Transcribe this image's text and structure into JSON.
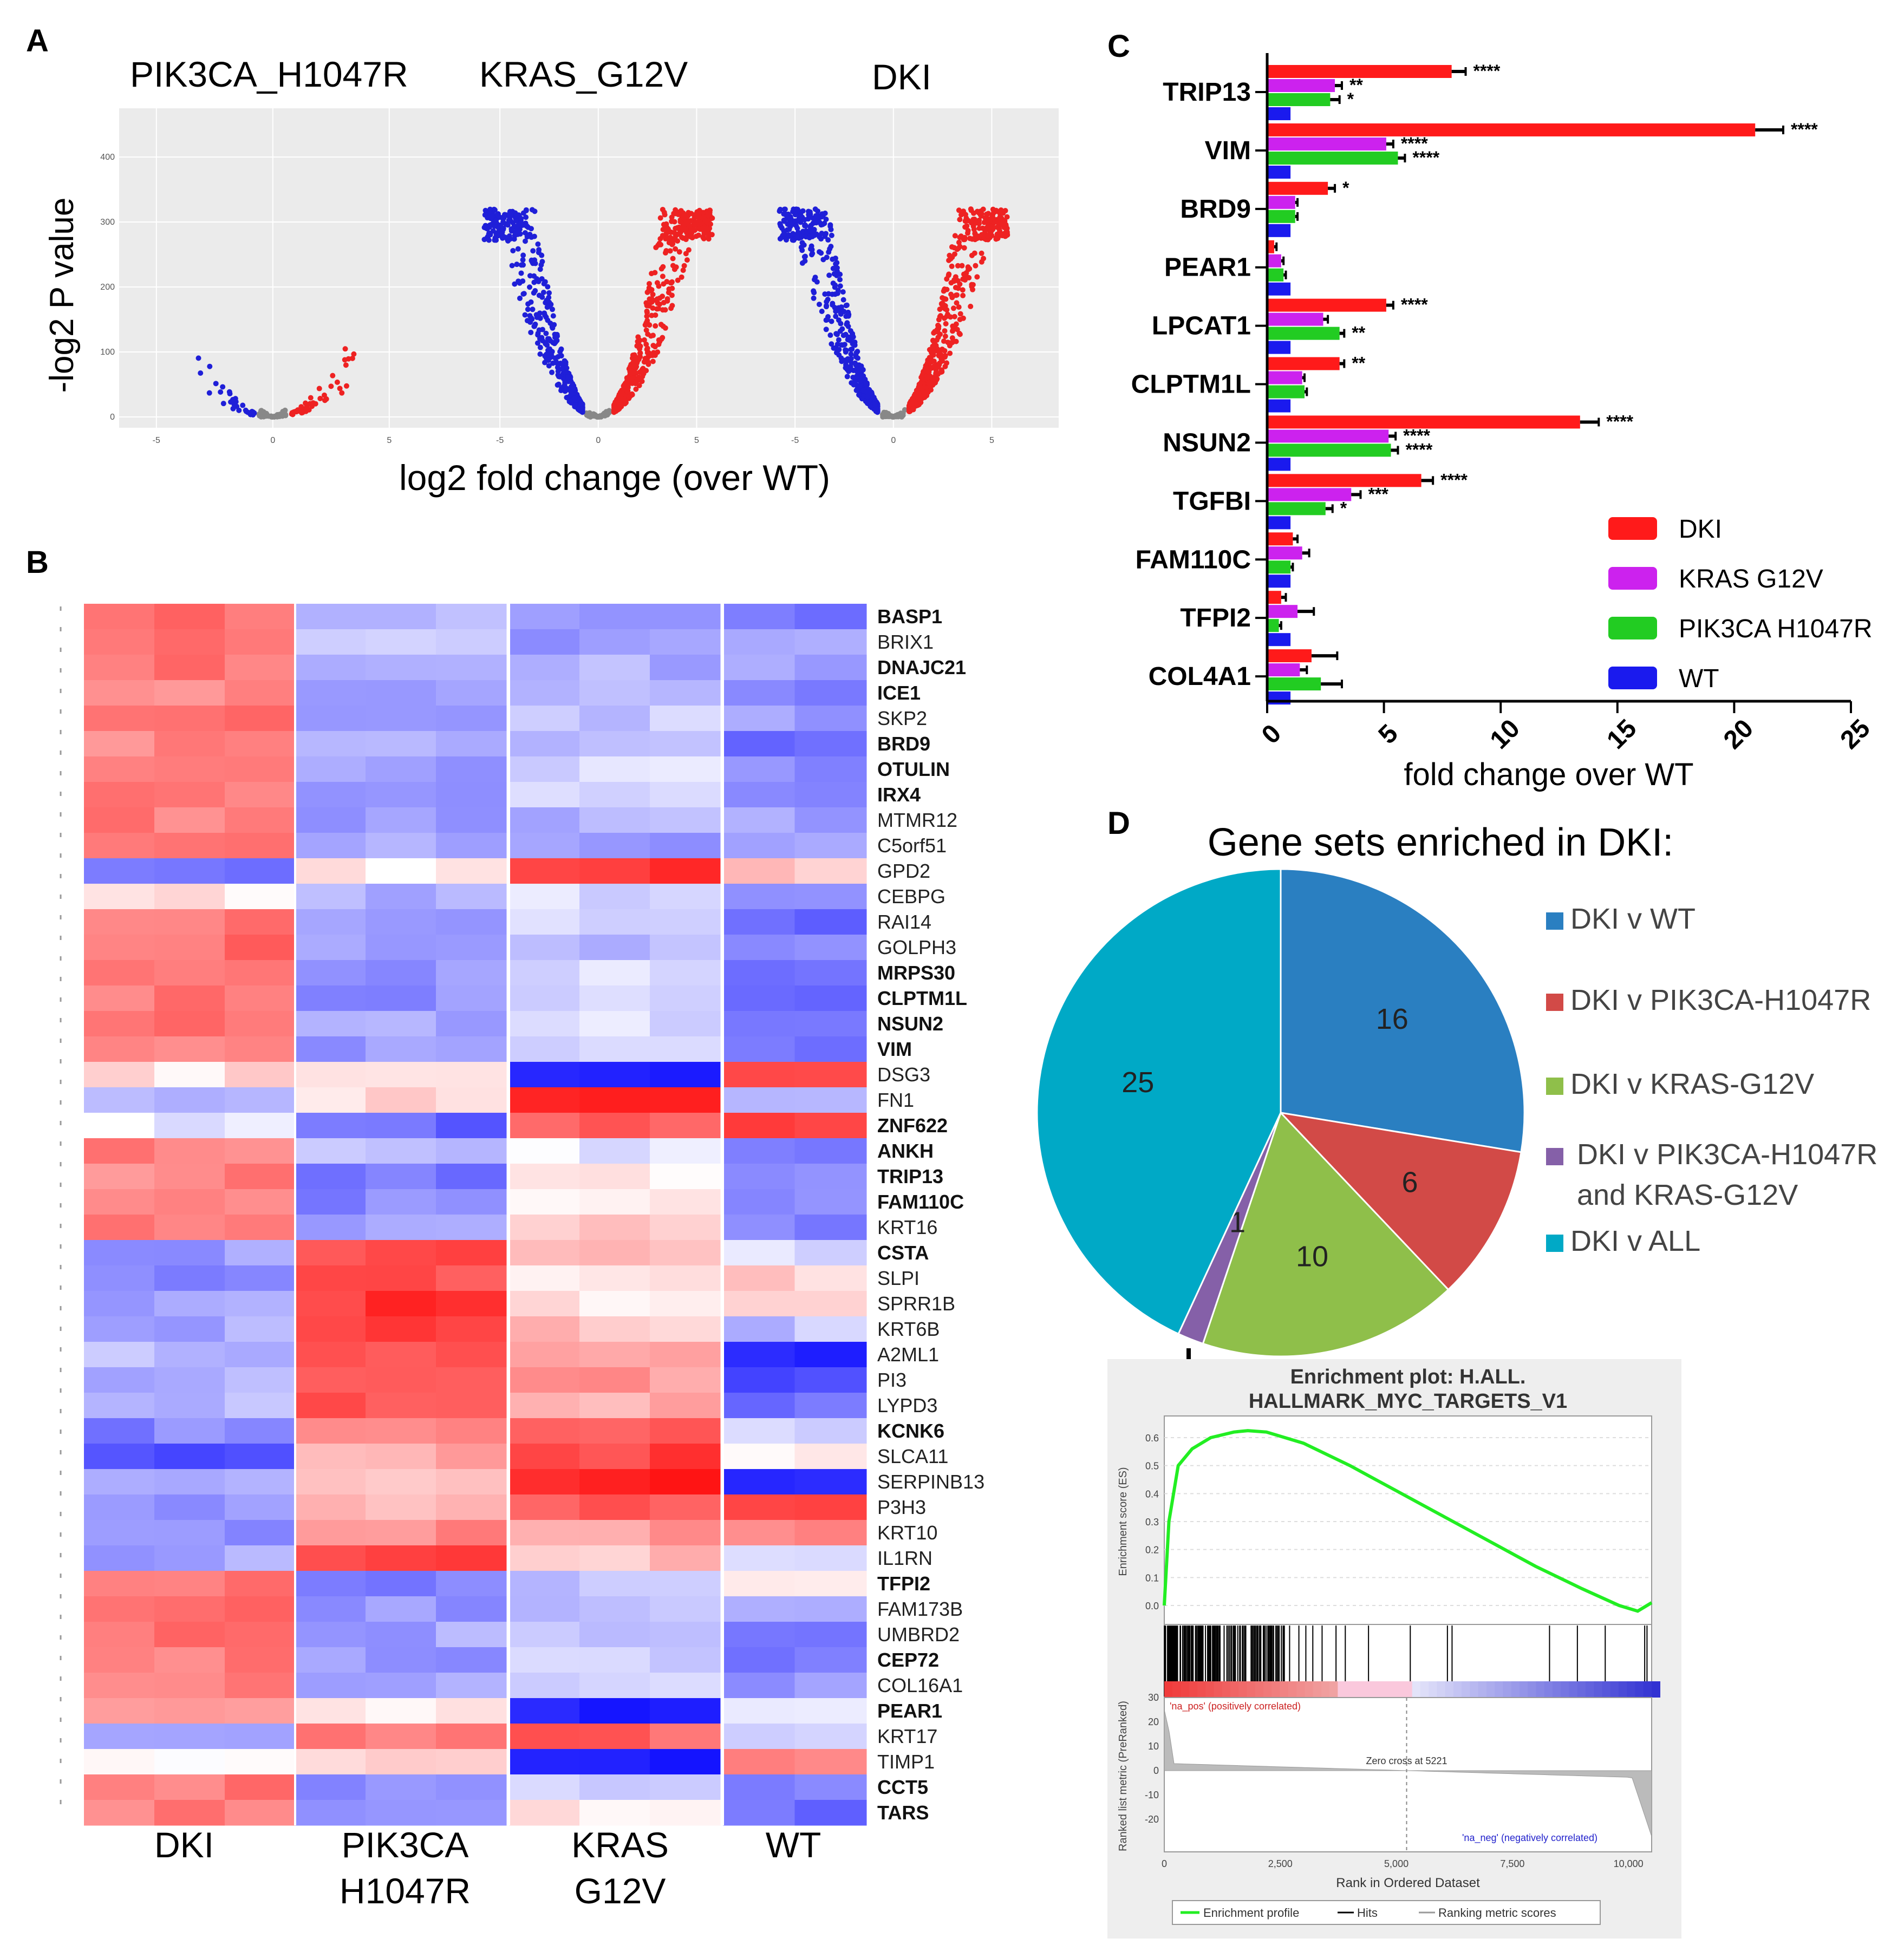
{
  "panels": {
    "A": "A",
    "B": "B",
    "C": "C",
    "D": "D"
  },
  "panel_a": {
    "titles": [
      "PIK3CA_H1047R",
      "KRAS_G12V",
      "DKI"
    ],
    "ylabel": "-log2 P value",
    "xlabel": "log2 fold change (over WT)",
    "y_ticks": [
      "400",
      "300",
      "200",
      "100",
      "0"
    ],
    "x_ticks": [
      "-5",
      "0",
      "5"
    ],
    "colors": {
      "down": "#1f1fd8",
      "up": "#ee2222",
      "ns": "#888888",
      "bg": "#ebebeb"
    }
  },
  "panel_b": {
    "genes": [
      {
        "name": "BASP1",
        "bold": true
      },
      {
        "name": "BRIX1",
        "bold": false
      },
      {
        "name": "DNAJC21",
        "bold": true
      },
      {
        "name": "ICE1",
        "bold": true
      },
      {
        "name": "SKP2",
        "bold": false
      },
      {
        "name": "BRD9",
        "bold": true
      },
      {
        "name": "OTULIN",
        "bold": true
      },
      {
        "name": "IRX4",
        "bold": true
      },
      {
        "name": "MTMR12",
        "bold": false
      },
      {
        "name": "C5orf51",
        "bold": false
      },
      {
        "name": "GPD2",
        "bold": false
      },
      {
        "name": "CEBPG",
        "bold": false
      },
      {
        "name": "RAI14",
        "bold": false
      },
      {
        "name": "GOLPH3",
        "bold": false
      },
      {
        "name": "MRPS30",
        "bold": true
      },
      {
        "name": "CLPTM1L",
        "bold": true
      },
      {
        "name": "NSUN2",
        "bold": true
      },
      {
        "name": "VIM",
        "bold": true
      },
      {
        "name": "DSG3",
        "bold": false
      },
      {
        "name": "FN1",
        "bold": false
      },
      {
        "name": "ZNF622",
        "bold": true
      },
      {
        "name": "ANKH",
        "bold": true
      },
      {
        "name": "TRIP13",
        "bold": true
      },
      {
        "name": "FAM110C",
        "bold": true
      },
      {
        "name": "KRT16",
        "bold": false
      },
      {
        "name": "CSTA",
        "bold": true
      },
      {
        "name": "SLPI",
        "bold": false
      },
      {
        "name": "SPRR1B",
        "bold": false
      },
      {
        "name": "KRT6B",
        "bold": false
      },
      {
        "name": "A2ML1",
        "bold": false
      },
      {
        "name": "PI3",
        "bold": false
      },
      {
        "name": "LYPD3",
        "bold": false
      },
      {
        "name": "KCNK6",
        "bold": true
      },
      {
        "name": "SLCA11",
        "bold": false
      },
      {
        "name": "SERPINB13",
        "bold": false
      },
      {
        "name": "P3H3",
        "bold": false
      },
      {
        "name": "KRT10",
        "bold": false
      },
      {
        "name": "IL1RN",
        "bold": false
      },
      {
        "name": "TFPI2",
        "bold": true
      },
      {
        "name": "FAM173B",
        "bold": false
      },
      {
        "name": "UMBRD2",
        "bold": false
      },
      {
        "name": "CEP72",
        "bold": true
      },
      {
        "name": "COL16A1",
        "bold": false
      },
      {
        "name": "PEAR1",
        "bold": true
      },
      {
        "name": "KRT17",
        "bold": false
      },
      {
        "name": "TIMP1",
        "bold": false
      },
      {
        "name": "CCT5",
        "bold": true
      },
      {
        "name": "TARS",
        "bold": true
      }
    ],
    "groups": [
      {
        "label1": "DKI",
        "label2": ""
      },
      {
        "label1": "PIK3CA",
        "label2": "H1047R"
      },
      {
        "label1": "KRAS",
        "label2": "G12V"
      },
      {
        "label1": "WT",
        "label2": ""
      }
    ],
    "pattern": [
      [
        1.3,
        -0.6,
        -1.0,
        -1.2
      ],
      [
        1.3,
        -0.4,
        -1.0,
        -0.9
      ],
      [
        1.3,
        -0.8,
        -0.8,
        -1.0
      ],
      [
        1.2,
        -1.0,
        -0.6,
        -1.3
      ],
      [
        1.3,
        -0.9,
        -0.5,
        -1.0
      ],
      [
        1.2,
        -0.7,
        -0.7,
        -1.4
      ],
      [
        1.3,
        -0.9,
        -0.3,
        -1.2
      ],
      [
        1.3,
        -1.1,
        -0.4,
        -1.1
      ],
      [
        1.2,
        -0.9,
        -0.8,
        -1.0
      ],
      [
        1.3,
        -0.8,
        -1.0,
        -0.8
      ],
      [
        -1.2,
        0.2,
        2.0,
        0.6
      ],
      [
        0.2,
        -0.8,
        -0.3,
        -1.2
      ],
      [
        1.3,
        -1.1,
        -0.5,
        -1.4
      ],
      [
        1.4,
        -0.9,
        -0.7,
        -1.1
      ],
      [
        1.3,
        -1.0,
        -0.4,
        -1.2
      ],
      [
        1.3,
        -1.1,
        -0.3,
        -1.3
      ],
      [
        1.3,
        -0.8,
        -0.4,
        -1.1
      ],
      [
        1.2,
        -1.0,
        -0.6,
        -1.3
      ],
      [
        0.3,
        0.2,
        -2.3,
        1.6
      ],
      [
        -0.6,
        0.3,
        2.0,
        -0.6
      ],
      [
        -0.2,
        -1.5,
        1.5,
        1.8
      ],
      [
        1.2,
        -0.7,
        -0.2,
        -1.1
      ],
      [
        1.2,
        -1.3,
        0.2,
        -1.2
      ],
      [
        1.2,
        -1.2,
        0.3,
        -1.1
      ],
      [
        1.2,
        -1.0,
        0.4,
        -1.2
      ],
      [
        -1.0,
        1.8,
        0.5,
        -0.3
      ],
      [
        -1.1,
        1.8,
        0.3,
        0.5
      ],
      [
        -1.0,
        2.0,
        0.3,
        0.2
      ],
      [
        -0.9,
        1.8,
        0.6,
        -0.6
      ],
      [
        -0.7,
        1.7,
        1.0,
        -2.2
      ],
      [
        -0.7,
        1.8,
        1.0,
        -1.9
      ],
      [
        -0.6,
        1.6,
        0.8,
        -1.4
      ],
      [
        -1.2,
        1.0,
        1.7,
        -0.5
      ],
      [
        -1.6,
        0.8,
        1.9,
        0.2
      ],
      [
        -0.7,
        0.4,
        2.3,
        -1.9
      ],
      [
        -1.1,
        0.6,
        1.6,
        1.8
      ],
      [
        -1.2,
        1.2,
        1.0,
        1.2
      ],
      [
        -0.9,
        1.9,
        0.6,
        -0.5
      ],
      [
        1.3,
        -1.2,
        -0.6,
        0.2
      ],
      [
        1.4,
        -1.0,
        -0.7,
        -0.8
      ],
      [
        1.3,
        -0.9,
        -0.6,
        -1.2
      ],
      [
        1.2,
        -1.0,
        -0.4,
        -1.3
      ],
      [
        1.2,
        -0.8,
        -0.3,
        -1.1
      ],
      [
        0.9,
        0.2,
        -2.3,
        -0.4
      ],
      [
        -1.1,
        1.2,
        1.5,
        -0.5
      ],
      [
        0.2,
        0.3,
        -2.2,
        1.2
      ],
      [
        1.3,
        -1.0,
        -0.4,
        -1.2
      ],
      [
        1.3,
        -0.9,
        0.2,
        -1.4
      ]
    ]
  },
  "chart_data": [
    {
      "type": "bar",
      "title": "",
      "orientation": "horizontal",
      "xlabel": "fold change over WT",
      "xlim": [
        0,
        25
      ],
      "x_ticks": [
        "0",
        "5",
        "10",
        "15",
        "20",
        "25"
      ],
      "categories": [
        "TRIP13",
        "VIM",
        "BRD9",
        "PEAR1",
        "LPCAT1",
        "CLPTM1L",
        "NSUN2",
        "TGFBI",
        "FAM110C",
        "TFPI2",
        "COL4A1"
      ],
      "series": [
        {
          "name": "DKI",
          "color": "#ff1a1a",
          "values": [
            7.9,
            20.9,
            2.6,
            0.3,
            5.1,
            3.1,
            13.4,
            6.6,
            1.1,
            0.6,
            1.9
          ]
        },
        {
          "name": "KRAS G12V",
          "color": "#cc22ee",
          "values": [
            2.9,
            5.1,
            1.2,
            0.6,
            2.4,
            1.5,
            5.2,
            3.6,
            1.5,
            1.3,
            1.4
          ]
        },
        {
          "name": "PIK3CA H1047R",
          "color": "#22cc22",
          "values": [
            2.7,
            5.6,
            1.2,
            0.7,
            3.1,
            1.6,
            5.3,
            2.5,
            1.0,
            0.5,
            2.3
          ]
        },
        {
          "name": "WT",
          "color": "#1a1aee",
          "values": [
            1,
            1,
            1,
            1,
            1,
            1,
            1,
            1,
            1,
            1,
            1
          ]
        }
      ],
      "errors": [
        [
          0.6,
          1.2,
          0.3,
          0.1,
          0.3,
          0.2,
          0.8,
          0.5,
          0.2,
          0.2,
          1.1
        ],
        [
          0.3,
          0.3,
          0.1,
          0.1,
          0.2,
          0.1,
          0.3,
          0.4,
          0.3,
          0.7,
          0.3
        ],
        [
          0.4,
          0.3,
          0.1,
          0.1,
          0.2,
          0.1,
          0.3,
          0.3,
          0.1,
          0.1,
          0.9
        ],
        [
          0,
          0,
          0,
          0,
          0,
          0,
          0,
          0,
          0,
          0,
          0
        ]
      ],
      "significance": [
        [
          "****",
          "**",
          "*",
          ""
        ],
        [
          "****",
          "****",
          "****",
          ""
        ],
        [
          "*",
          "",
          "",
          ""
        ],
        [
          "",
          "",
          "",
          ""
        ],
        [
          "****",
          "",
          "**",
          ""
        ],
        [
          "**",
          "",
          "",
          ""
        ],
        [
          "****",
          "****",
          "****",
          ""
        ],
        [
          "****",
          "***",
          "*",
          ""
        ],
        [
          "",
          "",
          "",
          ""
        ],
        [
          "",
          "",
          "",
          ""
        ],
        [
          "",
          "",
          "",
          ""
        ]
      ],
      "legend": "bottom-right"
    },
    {
      "type": "pie",
      "title": "Gene sets enriched in DKI:",
      "slices": [
        {
          "label": "DKI v WT",
          "value": 16,
          "color": "#2a7fc1"
        },
        {
          "label": "DKI v PIK3CA-H1047R",
          "value": 6,
          "color": "#d24a47"
        },
        {
          "label": "DKI v KRAS-G12V",
          "value": 10,
          "color": "#8fbf4a"
        },
        {
          "label_lines": [
            "DKI v PIK3CA-H1047R",
            "and KRAS-G12V"
          ],
          "value": 1,
          "color": "#8560a8"
        },
        {
          "label": "DKI v ALL",
          "value": 25,
          "color": "#00a9c6"
        }
      ],
      "legend": "right"
    },
    {
      "type": "line",
      "title_lines": [
        "Enrichment plot: H.ALL.",
        "HALLMARK_MYC_TARGETS_V1"
      ],
      "ylabel": "Enrichment score (ES)",
      "ylabel2": "Ranked list metric (PreRanked)",
      "xlabel": "Rank in Ordered Dataset",
      "ylim": [
        0,
        0.65
      ],
      "xlim": [
        0,
        10500
      ],
      "es_ticks": [
        "0.6",
        "0.5",
        "0.4",
        "0.3",
        "0.2",
        "0.1",
        "0.0"
      ],
      "metric_ticks": [
        "30",
        "20",
        "10",
        "0",
        "-10",
        "-20"
      ],
      "x_ticks": [
        "0",
        "2,500",
        "5,000",
        "7,500",
        "10,000"
      ],
      "x": [
        0,
        100,
        300,
        600,
        1000,
        1500,
        1800,
        2200,
        3000,
        4000,
        5000,
        6000,
        7000,
        8000,
        9000,
        9800,
        10200,
        10400,
        10500
      ],
      "es": [
        0.0,
        0.3,
        0.5,
        0.56,
        0.6,
        0.62,
        0.625,
        0.62,
        0.58,
        0.5,
        0.41,
        0.32,
        0.23,
        0.14,
        0.06,
        0.0,
        -0.02,
        0.0,
        0.01
      ],
      "hits_dense_until": 2600,
      "sparse_hits": [
        2700,
        2900,
        3050,
        3200,
        3400,
        3700,
        3900,
        4400,
        5300,
        6100,
        6200,
        8300,
        8900,
        9500,
        10350,
        10400
      ],
      "zero_cross_label": "Zero cross at 5221",
      "zero_cross": 5221,
      "pos_label": "'na_pos' (positively correlated)",
      "neg_label": "'na_neg' (negatively correlated)",
      "legend": [
        "Enrichment profile",
        "Hits",
        "Ranking metric scores"
      ],
      "line_color": "#22ee22"
    }
  ]
}
